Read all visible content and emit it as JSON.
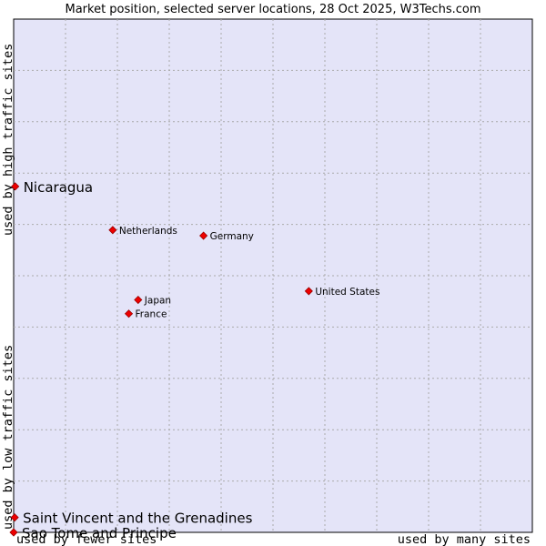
{
  "chart_data": {
    "type": "scatter",
    "title": "Market position, selected server locations, 28 Oct 2025, W3Techs.com",
    "xlabel_low": "used by fewer sites",
    "xlabel_high": "used by many sites",
    "ylabel_low": "used by low traffic sites",
    "ylabel_high": "used by high traffic sites",
    "xlim": [
      0,
      100
    ],
    "ylim": [
      0,
      100
    ],
    "grid": true,
    "colors": {
      "plot_bg": "#e4e4f8",
      "grid": "#aaaaaa",
      "marker": "#ee0000",
      "marker_stroke": "#990000"
    },
    "points": [
      {
        "label": "Nicaragua",
        "x": 0.3,
        "y": 67.4,
        "emphasis": true
      },
      {
        "label": "Netherlands",
        "x": 19.1,
        "y": 58.9,
        "emphasis": false
      },
      {
        "label": "Germany",
        "x": 36.6,
        "y": 57.8,
        "emphasis": false
      },
      {
        "label": "United States",
        "x": 56.9,
        "y": 47.0,
        "emphasis": false
      },
      {
        "label": "Japan",
        "x": 24.0,
        "y": 45.3,
        "emphasis": false
      },
      {
        "label": "France",
        "x": 22.2,
        "y": 42.6,
        "emphasis": false
      },
      {
        "label": "Saint Vincent and the Grenadines",
        "x": 0.2,
        "y": 2.9,
        "emphasis": true
      },
      {
        "label": "Sao Tome and Principe",
        "x": 0.0,
        "y": 0.0,
        "emphasis": true
      }
    ]
  }
}
